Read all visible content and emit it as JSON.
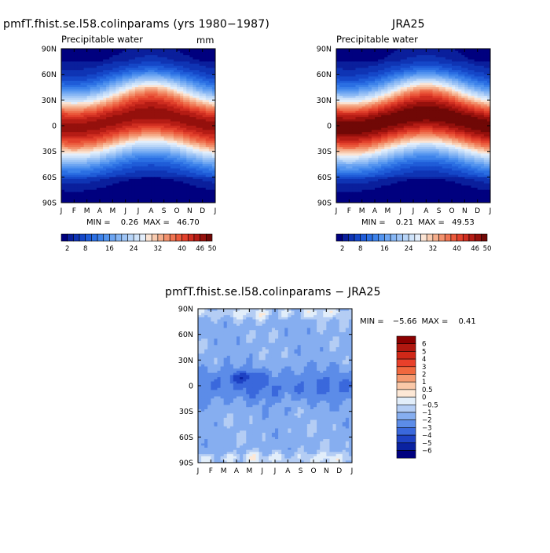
{
  "chart_data": [
    {
      "type": "heatmap",
      "title": "pmfT.fhist.se.l58.colinparams (yrs 1980−1987)",
      "subtitle": "Precipitable water",
      "units": "mm",
      "x_ticks": [
        "J",
        "F",
        "M",
        "A",
        "M",
        "J",
        "J",
        "A",
        "S",
        "O",
        "N",
        "D",
        "J"
      ],
      "y_ticks": [
        "90N",
        "60N",
        "30N",
        "0",
        "30S",
        "60S",
        "90S"
      ],
      "x_range_months": [
        0,
        12
      ],
      "y_range_lat": [
        -90,
        90
      ],
      "min_label": "MIN = ",
      "min_value": "0.26",
      "max_label": "MAX = ",
      "max_value": "46.70",
      "colorbar_ticks": [
        "2",
        "8",
        "16",
        "24",
        "32",
        "40",
        "46",
        "50"
      ],
      "colorbar_levels": [
        2,
        4,
        6,
        8,
        10,
        12,
        14,
        16,
        18,
        20,
        22,
        24,
        26,
        28,
        30,
        32,
        34,
        36,
        38,
        40,
        42,
        44,
        46,
        48,
        50
      ],
      "peak_tropical": 46.7,
      "peak_lat_center": 6,
      "colors": [
        "#00007f",
        "#0a1f9c",
        "#0f34b4",
        "#1547c8",
        "#1f5cd8",
        "#2b6fe3",
        "#3d82ea",
        "#5394ef",
        "#6ca5f2",
        "#86b6f4",
        "#9fc5f6",
        "#b8d5f8",
        "#cfe3fa",
        "#e3eefb",
        "#fbe4d4",
        "#f8cbb0",
        "#f5ae8c",
        "#f2916d",
        "#ef7452",
        "#eb5a3c",
        "#e2412c",
        "#cf2d20",
        "#b51c15",
        "#95100c",
        "#700806"
      ]
    },
    {
      "type": "heatmap",
      "title": "JRA25",
      "subtitle": "Precipitable water",
      "x_ticks": [
        "J",
        "F",
        "M",
        "A",
        "M",
        "J",
        "J",
        "A",
        "S",
        "O",
        "N",
        "D",
        "J"
      ],
      "y_ticks": [
        "90N",
        "60N",
        "30N",
        "0",
        "30S",
        "60S",
        "90S"
      ],
      "x_range_months": [
        0,
        12
      ],
      "y_range_lat": [
        -90,
        90
      ],
      "min_label": "MIN = ",
      "min_value": "0.21",
      "max_label": "MAX = ",
      "max_value": "49.53",
      "colorbar_ticks": [
        "2",
        "8",
        "16",
        "24",
        "32",
        "40",
        "46",
        "50"
      ],
      "peak_tropical": 49.5,
      "peak_lat_center": 6
    },
    {
      "type": "heatmap",
      "title": "pmfT.fhist.se.l58.colinparams − JRA25",
      "x_ticks": [
        "J",
        "F",
        "M",
        "A",
        "M",
        "J",
        "J",
        "A",
        "S",
        "O",
        "N",
        "D",
        "J"
      ],
      "y_ticks": [
        "90N",
        "60N",
        "30N",
        "0",
        "30S",
        "60S",
        "90S"
      ],
      "x_range_months": [
        0,
        12
      ],
      "y_range_lat": [
        -90,
        90
      ],
      "min_label": "MIN = ",
      "min_value": "−5.66",
      "max_label": "MAX = ",
      "max_value": "0.41",
      "colorbar_labels": [
        "6",
        "5",
        "4",
        "3",
        "2",
        "1",
        "0.5",
        "0",
        "−0.5",
        "−1",
        "−2",
        "−3",
        "−4",
        "−5",
        "−6"
      ],
      "colorbar_colors": [
        "#8b0000",
        "#b01810",
        "#d02818",
        "#e8402a",
        "#f0683e",
        "#f59a70",
        "#fac8a8",
        "#fde8d6",
        "#e2eefa",
        "#b4cdf4",
        "#86aef0",
        "#5c8ce8",
        "#3a68dc",
        "#1e42c4",
        "#0a22a0",
        "#00007f"
      ]
    }
  ]
}
